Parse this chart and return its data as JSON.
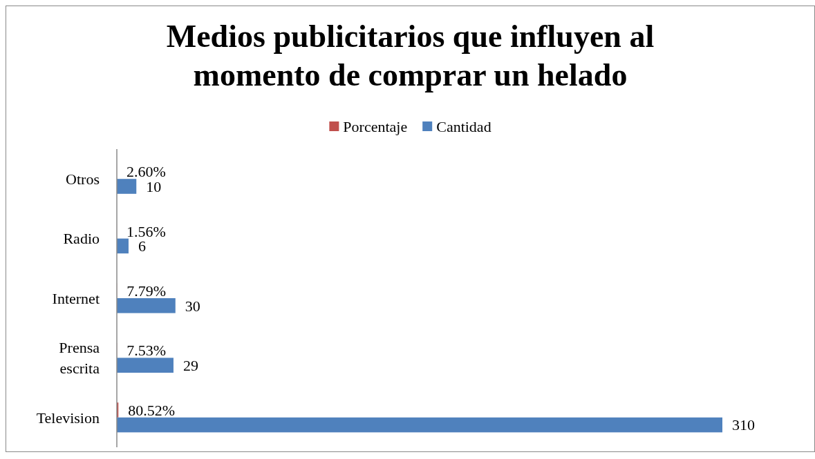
{
  "chart_data": {
    "type": "bar",
    "orientation": "horizontal",
    "title": "Medios publicitarios que influyen al momento de comprar un helado",
    "categories": [
      "Otros",
      "Radio",
      "Internet",
      "Prensa escrita",
      "Television"
    ],
    "series": [
      {
        "name": "Porcentaje",
        "color": "#c0504d",
        "values": [
          0.026,
          0.0156,
          0.0779,
          0.0753,
          0.8052
        ],
        "value_labels": [
          "2.60%",
          "1.56%",
          "7.79%",
          "7.53%",
          "80.52%"
        ]
      },
      {
        "name": "Cantidad",
        "color": "#4f81bd",
        "values": [
          10,
          6,
          30,
          29,
          310
        ],
        "value_labels": [
          "10",
          "6",
          "30",
          "29",
          "310"
        ]
      }
    ],
    "legend": "top"
  }
}
